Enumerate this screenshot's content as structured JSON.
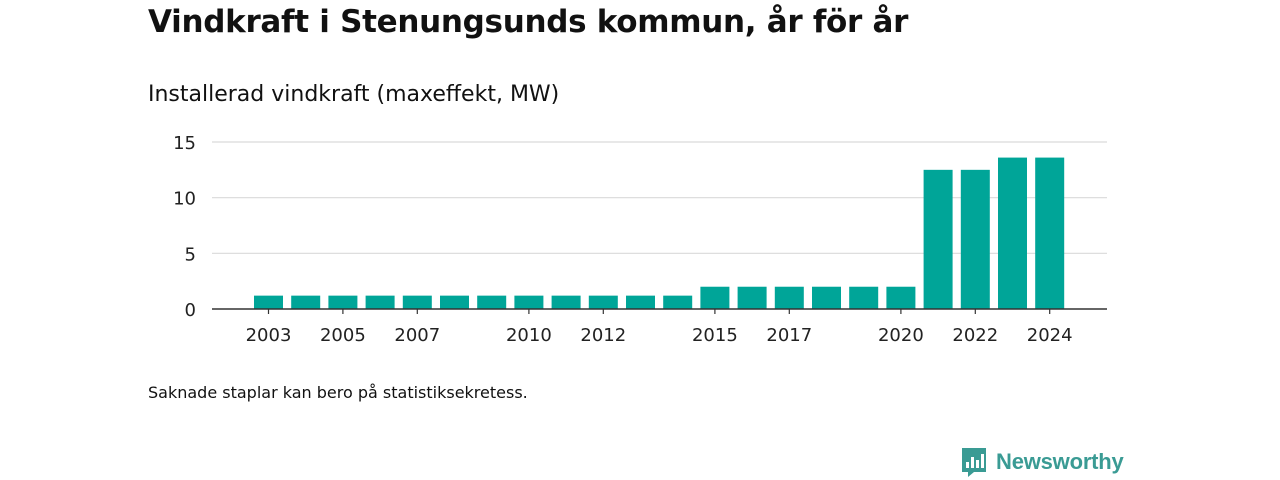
{
  "title": "Vindkraft i Stenungsunds kommun, år för år",
  "footnote": "Saknade staplar kan bero på statistiksekretess.",
  "brand": {
    "name": "Newsworthy",
    "icon": "newsworthy-logo-icon"
  },
  "colors": {
    "bar": "#00a598",
    "grid": "#d9d9d9",
    "axis": "#333333",
    "brand": "#3a9b94"
  },
  "chart_data": {
    "type": "bar",
    "title": "Installerad vindkraft (maxeffekt, MW)",
    "categories": [
      "2003",
      "2004",
      "2005",
      "2006",
      "2007",
      "2008",
      "2009",
      "2010",
      "2011",
      "2012",
      "2013",
      "2014",
      "2015",
      "2016",
      "2017",
      "2018",
      "2019",
      "2020",
      "2021",
      "2022",
      "2023",
      "2024"
    ],
    "values": [
      1.2,
      1.2,
      1.2,
      1.2,
      1.2,
      1.2,
      1.2,
      1.2,
      1.2,
      1.2,
      1.2,
      1.2,
      2.0,
      2.0,
      2.0,
      2.0,
      2.0,
      2.0,
      12.5,
      12.5,
      13.6,
      13.6
    ],
    "x_tick_labels": [
      "2003",
      "2005",
      "2007",
      "2010",
      "2012",
      "2015",
      "2017",
      "2020",
      "2022",
      "2024"
    ],
    "y_ticks": [
      0,
      5,
      10,
      15
    ],
    "ylim": [
      0,
      15
    ],
    "grid": true,
    "xlabel": "",
    "ylabel": ""
  }
}
